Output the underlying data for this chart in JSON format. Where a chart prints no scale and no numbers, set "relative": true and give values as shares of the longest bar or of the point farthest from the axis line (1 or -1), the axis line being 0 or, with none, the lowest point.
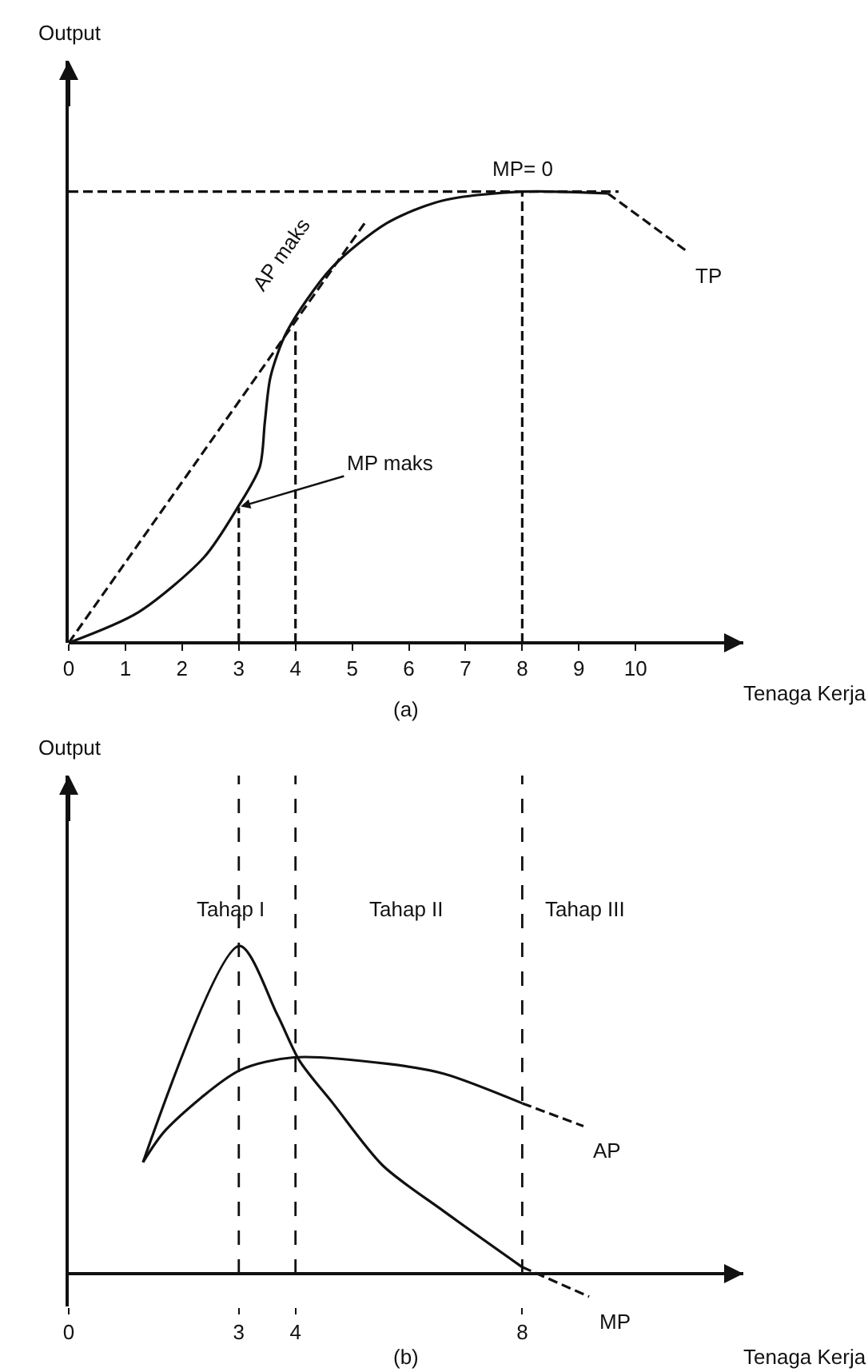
{
  "chart_data": [
    {
      "type": "line",
      "relative": true,
      "xlabel": "Tenaga Kerja",
      "ylabel": "Output",
      "xlim": [
        0,
        11.9
      ],
      "xticks": [
        0,
        1,
        2,
        3,
        4,
        5,
        6,
        7,
        8,
        9,
        10
      ],
      "tick_labels": "x",
      "grid": false,
      "legend": false,
      "marker": "none",
      "series": [
        {
          "color": "#111111",
          "line_style": "solid",
          "x": [
            0,
            1.22,
            2.39,
            2.98,
            3.37,
            3.46,
            3.56,
            3.85,
            4.63,
            5.61,
            6.59,
            8,
            9.51
          ],
          "values": [
            0,
            0.067,
            0.19,
            0.3,
            0.39,
            0.49,
            0.59,
            0.69,
            0.83,
            0.93,
            0.98,
            1,
            0.996
          ]
        },
        {
          "name": "TP",
          "color": "#111111",
          "line_style": "dashed",
          "x": [
            9.51,
            10.88
          ],
          "values": [
            0.996,
            0.87
          ]
        },
        {
          "color": "#111111",
          "line_style": "dashed",
          "x": [
            0,
            5.22
          ],
          "values": [
            0,
            0.93
          ]
        },
        {
          "color": "#111111",
          "line_style": "dashed",
          "x": [
            0,
            9.7
          ],
          "values": [
            1,
            1
          ]
        },
        {
          "color": "#111111",
          "line_style": "dashed",
          "x": [
            3,
            3
          ],
          "values": [
            0,
            0.3
          ]
        },
        {
          "color": "#111111",
          "line_style": "dashed",
          "x": [
            4,
            4
          ],
          "values": [
            0,
            0.69
          ]
        },
        {
          "color": "#111111",
          "line_style": "dashed",
          "x": [
            8,
            8
          ],
          "values": [
            0,
            1
          ]
        }
      ],
      "annotations": [
        {
          "text": "MP= 0",
          "x": 8,
          "y": 1
        },
        {
          "text": "AP maks",
          "x": 3.85,
          "y": 0.69
        },
        {
          "text": "MP maks",
          "x": 2.98,
          "y": 0.3
        },
        "(a)"
      ]
    },
    {
      "type": "line",
      "relative": true,
      "xlabel": "Tenaga Kerja",
      "ylabel": "Output",
      "xlim": [
        0,
        11.9
      ],
      "xticks": [
        0,
        3,
        4,
        8
      ],
      "tick_labels": "x",
      "grid": false,
      "legend": false,
      "marker": "none",
      "series": [
        {
          "color": "#111111",
          "line_style": "solid",
          "x": [
            1.31,
            3.01,
            3.68,
            4.07,
            4.66,
            5.54,
            6.62,
            8
          ],
          "values": [
            0.34,
            1,
            0.79,
            0.65,
            0.52,
            0.33,
            0.19,
            0.02
          ]
        },
        {
          "name": "MP",
          "color": "#111111",
          "line_style": "dashed",
          "x": [
            8,
            9.18
          ],
          "values": [
            0.02,
            -0.07
          ]
        },
        {
          "color": "#111111",
          "line_style": "solid",
          "x": [
            1.31,
            1.72,
            3.01,
            3.97,
            5.64,
            6.62,
            8
          ],
          "values": [
            0.34,
            0.44,
            0.62,
            0.66,
            0.64,
            0.61,
            0.52
          ]
        },
        {
          "name": "AP",
          "color": "#111111",
          "line_style": "dashed",
          "x": [
            8,
            9.08
          ],
          "values": [
            0.52,
            0.45
          ]
        }
      ],
      "ref_lines": [
        {
          "axis": "x",
          "value": 3,
          "line_style": "dashed"
        },
        {
          "axis": "x",
          "value": 4,
          "line_style": "dashed"
        },
        {
          "axis": "x",
          "value": 8,
          "line_style": "dashed"
        }
      ],
      "annotations": [
        "Tahap I",
        "Tahap II",
        "Tahap III",
        "(b)"
      ]
    }
  ]
}
